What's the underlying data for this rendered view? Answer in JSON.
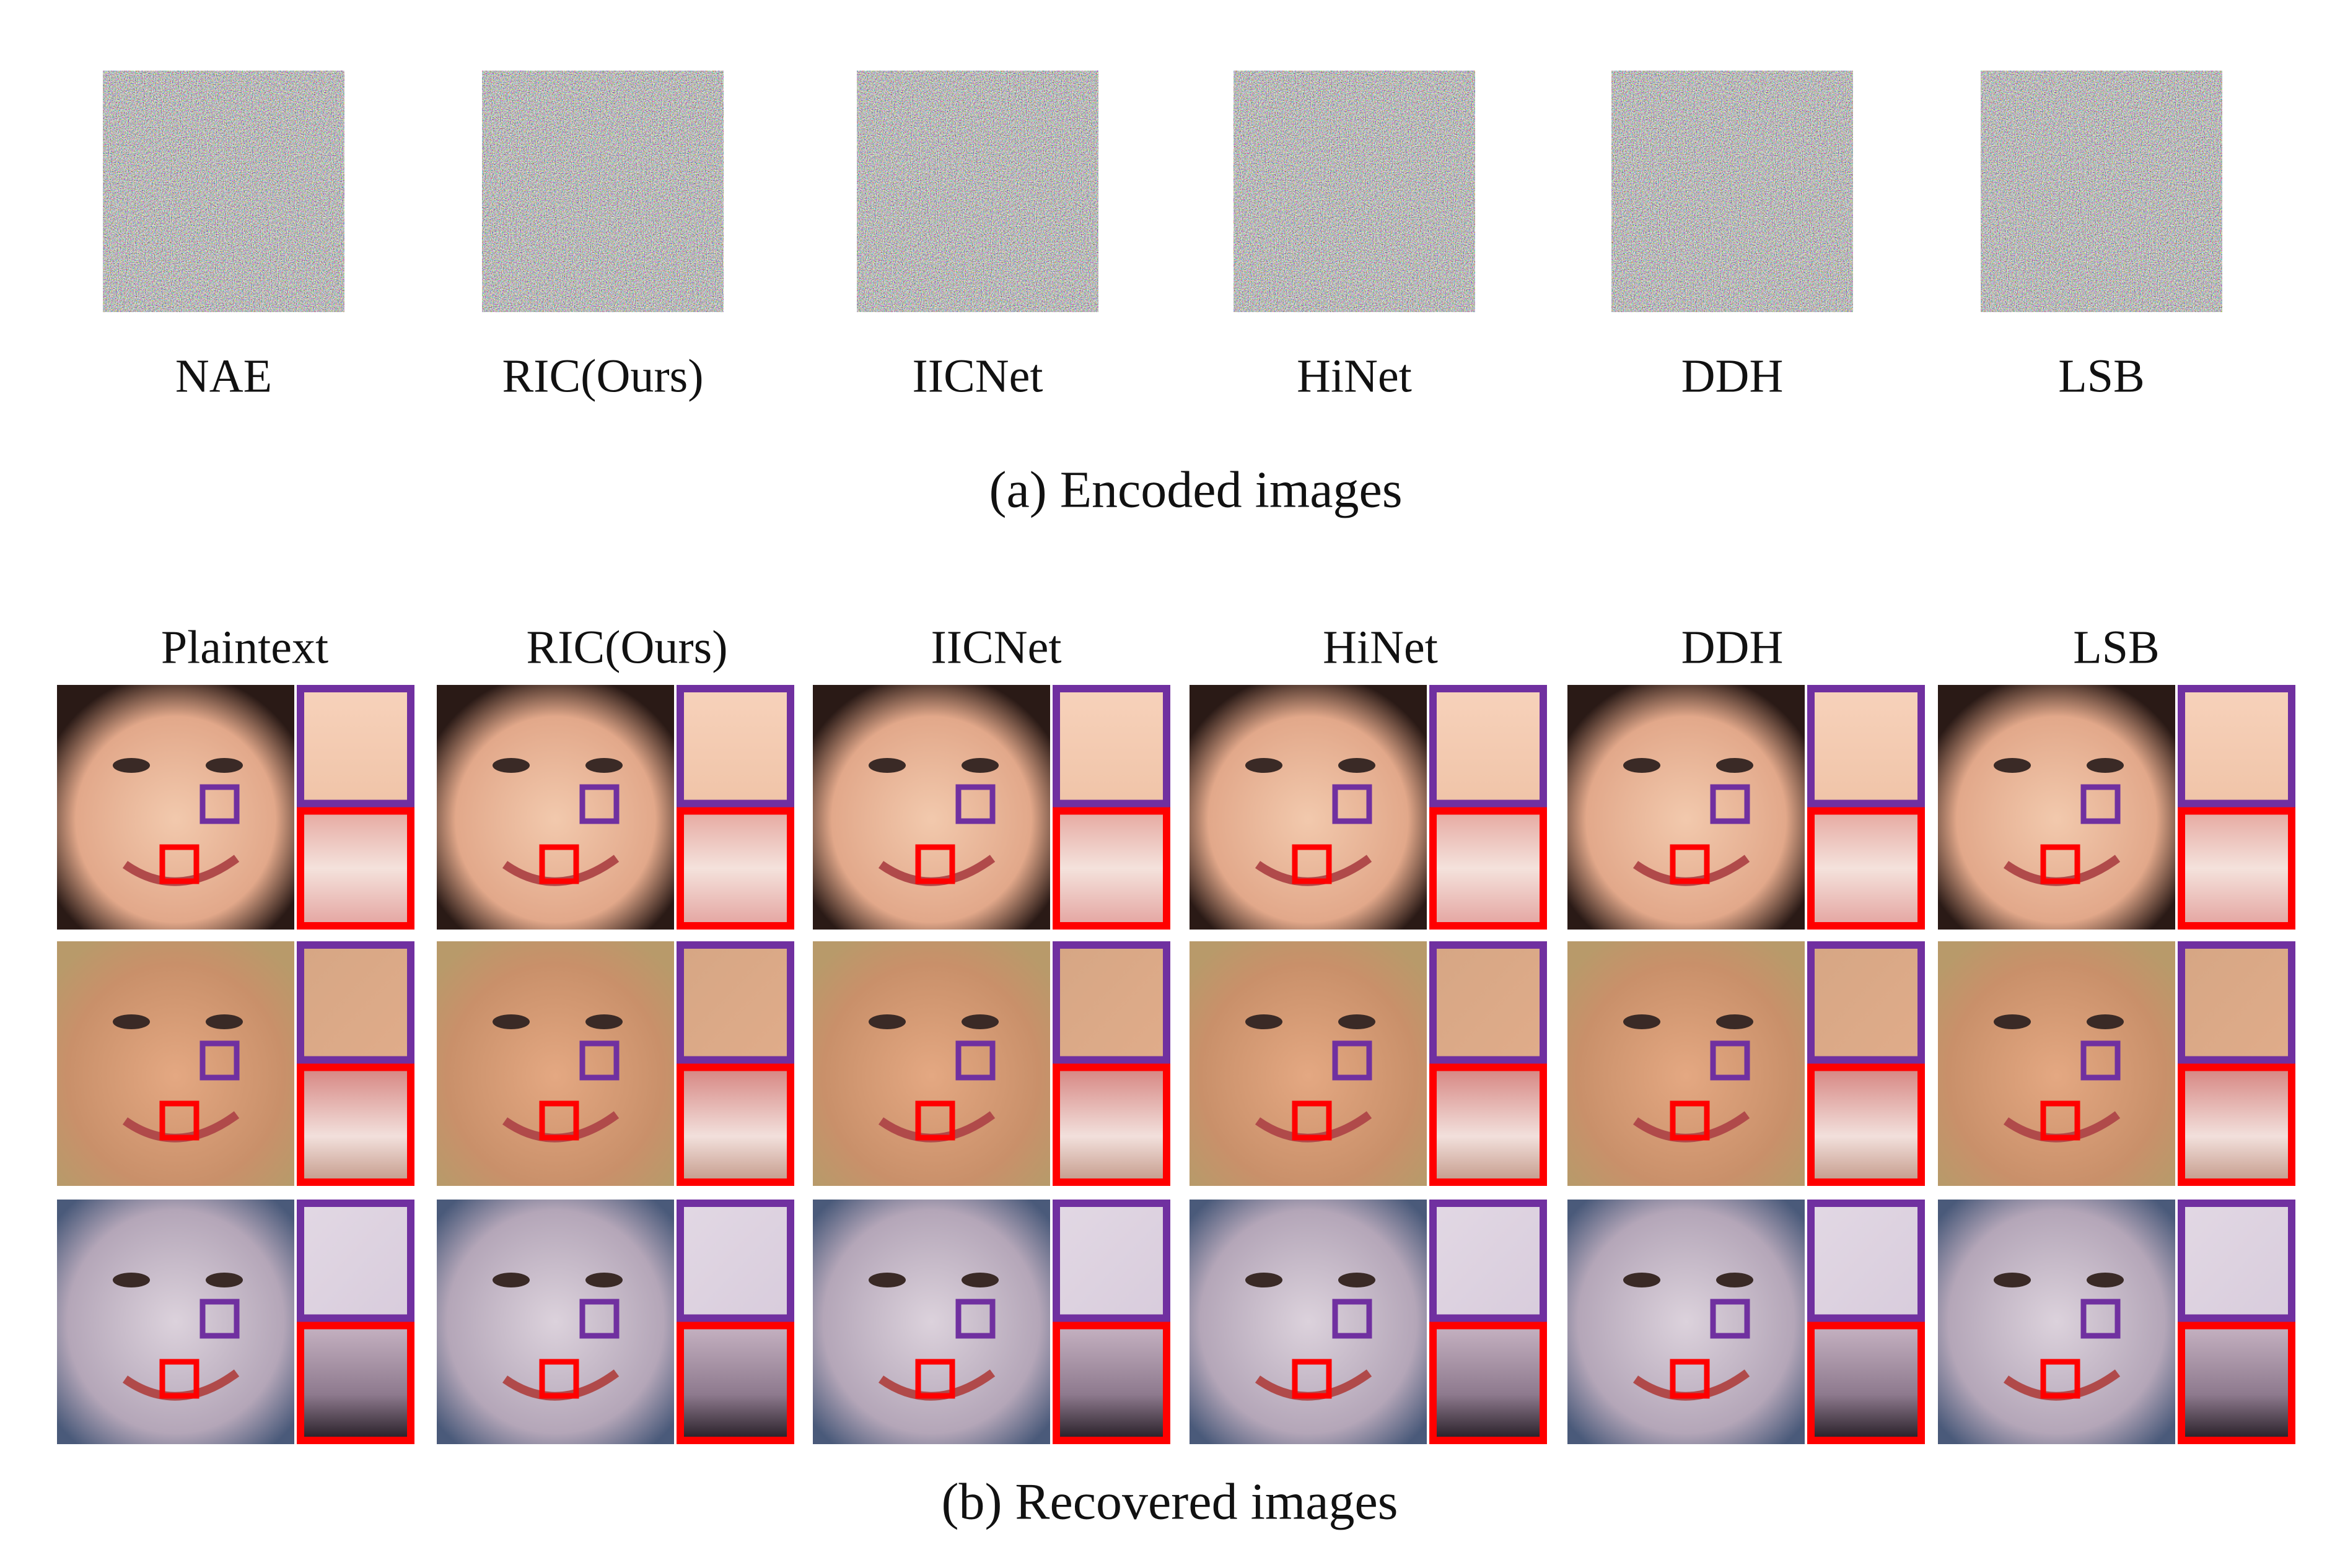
{
  "panel_a": {
    "labels": [
      "NAE",
      "RIC(Ours)",
      "IICNet",
      "HiNet",
      "DDH",
      "LSB"
    ],
    "caption": "(a) Encoded images"
  },
  "panel_b": {
    "labels": [
      "Plaintext",
      "RIC(Ours)",
      "IICNet",
      "HiNet",
      "DDH",
      "LSB"
    ],
    "caption": "(b) Recovered images"
  }
}
